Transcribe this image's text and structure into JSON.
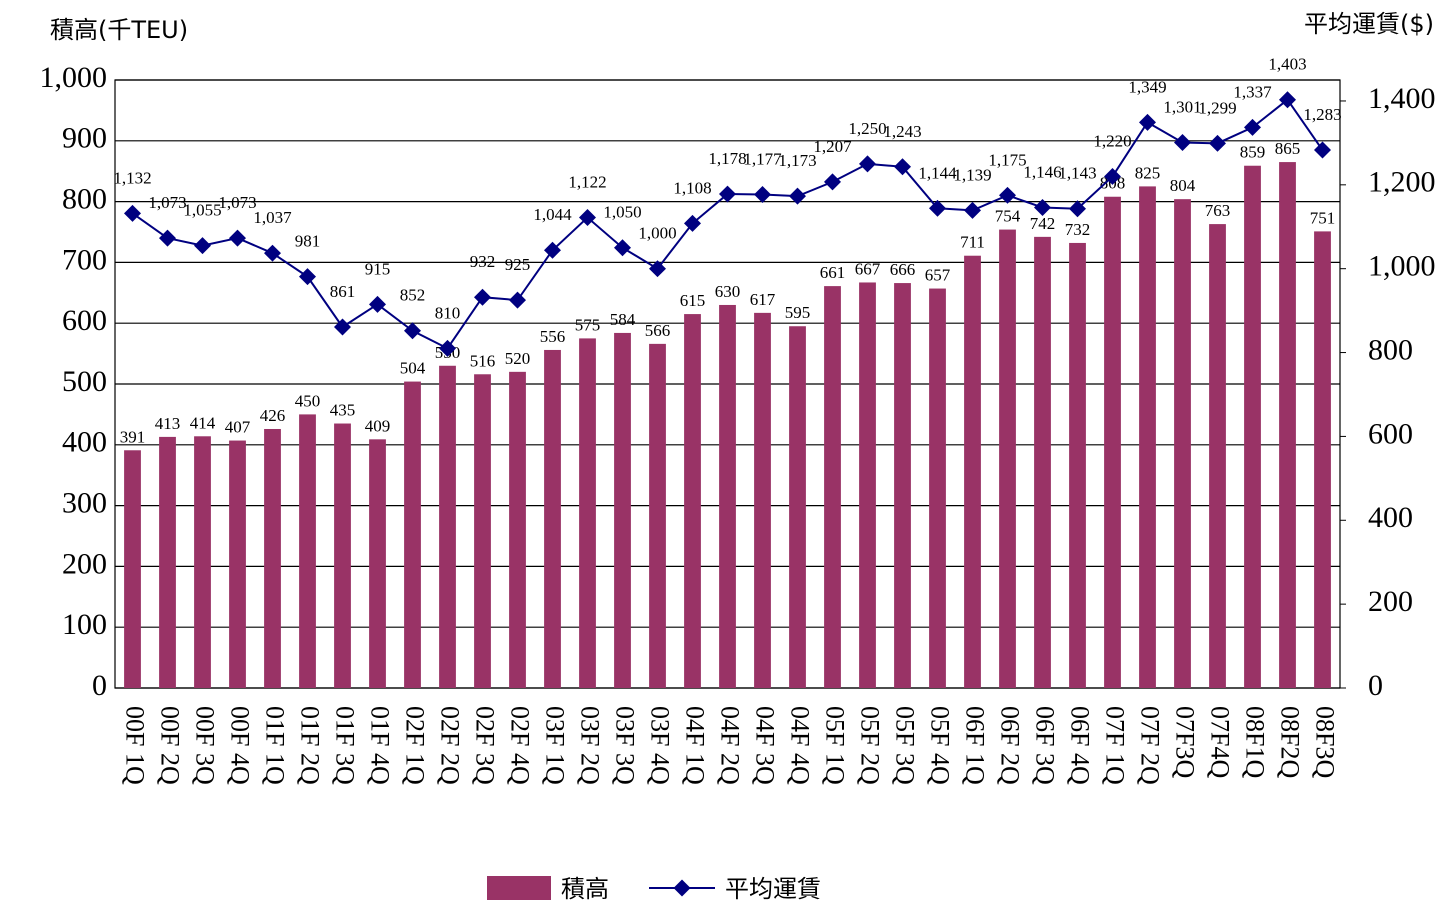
{
  "chart_data": {
    "type": "bar_line",
    "y_label": "積高(千TEU)",
    "y2_label": "平均運賃($)",
    "categories": [
      "00F 1Q",
      "00F 2Q",
      "00F 3Q",
      "00F 4Q",
      "01F 1Q",
      "01F 2Q",
      "01F 3Q",
      "01F 4Q",
      "02F 1Q",
      "02F 2Q",
      "02F 3Q",
      "02F 4Q",
      "03F 1Q",
      "03F 2Q",
      "03F 3Q",
      "03F 4Q",
      "04F 1Q",
      "04F 2Q",
      "04F 3Q",
      "04F 4Q",
      "05F 1Q",
      "05F 2Q",
      "05F 3Q",
      "05F 4Q",
      "06F 1Q",
      "06F 2Q",
      "06F 3Q",
      "06F 4Q",
      "07F 1Q",
      "07F 2Q",
      "07F3Q",
      "07F4Q",
      "08F1Q",
      "08F2Q",
      "08F3Q"
    ],
    "series": [
      {
        "name": "積高",
        "color": "#993366",
        "type": "bar",
        "values": [
          391,
          413,
          414,
          407,
          426,
          450,
          435,
          409,
          504,
          530,
          516,
          520,
          556,
          575,
          584,
          566,
          615,
          630,
          617,
          595,
          661,
          667,
          666,
          657,
          711,
          754,
          742,
          732,
          808,
          825,
          804,
          763,
          859,
          865,
          751
        ]
      },
      {
        "name": "平均運賃",
        "color": "#000080",
        "type": "line",
        "axis": "y2",
        "values": [
          1132,
          1073,
          1055,
          1073,
          1037,
          981,
          861,
          915,
          852,
          810,
          932,
          925,
          1044,
          1122,
          1050,
          1000,
          1108,
          1178,
          1177,
          1173,
          1207,
          1250,
          1243,
          1144,
          1139,
          1175,
          1146,
          1143,
          1220,
          1349,
          1301,
          1299,
          1337,
          1403,
          1283
        ],
        "value_labels": [
          "1,132",
          "1,073",
          "1,055",
          "1,073",
          "1,037",
          "981",
          "861",
          "915",
          "852",
          "810",
          "932",
          "925",
          "1,044",
          "1,122",
          "1,050",
          "1,000",
          "1,108",
          "1,178",
          "1,177",
          "1,173",
          "1,207",
          "1,250",
          "1,243",
          "1,144",
          "1,139",
          "1,175",
          "1,146",
          "1,143",
          "1,220",
          "1,349",
          "1,301",
          "1,299",
          "1,337",
          "1,403",
          "1,283"
        ]
      }
    ],
    "ylim": [
      0,
      1000
    ],
    "yticks": [
      0,
      100,
      200,
      300,
      400,
      500,
      600,
      700,
      800,
      900,
      {
        "value": 1000,
        "label": "1,000"
      }
    ],
    "y2lim": [
      0,
      1450
    ],
    "y2ticks": [
      0,
      200,
      400,
      600,
      800,
      {
        "value": 1000,
        "label": "1,000"
      },
      {
        "value": 1200,
        "label": "1,200"
      },
      {
        "value": 1400,
        "label": "1,400"
      }
    ],
    "grid": true,
    "legend": "bottom"
  }
}
